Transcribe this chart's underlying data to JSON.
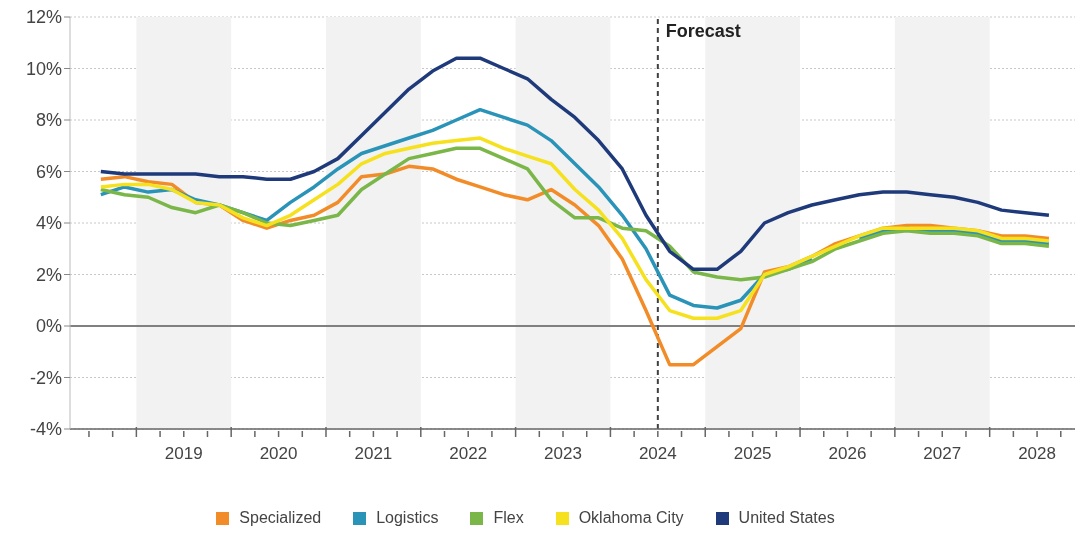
{
  "chart_data": {
    "type": "line",
    "x": [
      2018.625,
      2018.875,
      2019.125,
      2019.375,
      2019.625,
      2019.875,
      2020.125,
      2020.375,
      2020.625,
      2020.875,
      2021.125,
      2021.375,
      2021.625,
      2021.875,
      2022.125,
      2022.375,
      2022.625,
      2022.875,
      2023.125,
      2023.375,
      2023.625,
      2023.875,
      2024.125,
      2024.375,
      2024.625,
      2024.875,
      2025.125,
      2025.375,
      2025.625,
      2025.875,
      2026.125,
      2026.375,
      2026.625,
      2026.875,
      2027.125,
      2027.375,
      2027.625,
      2027.875,
      2028.125,
      2028.375,
      2028.625
    ],
    "series": [
      {
        "name": "Specialized",
        "color": "#f28c28",
        "values": [
          5.7,
          5.8,
          5.6,
          5.5,
          4.8,
          4.7,
          4.1,
          3.8,
          4.1,
          4.3,
          4.8,
          5.8,
          5.9,
          6.2,
          6.1,
          5.7,
          5.4,
          5.1,
          4.9,
          5.3,
          4.7,
          3.9,
          2.6,
          0.6,
          -1.5,
          -1.5,
          -0.8,
          -0.1,
          2.1,
          2.3,
          2.7,
          3.2,
          3.5,
          3.8,
          3.9,
          3.9,
          3.8,
          3.7,
          3.5,
          3.5,
          3.4
        ]
      },
      {
        "name": "Logistics",
        "color": "#2a93b8",
        "values": [
          5.1,
          5.4,
          5.2,
          5.3,
          4.9,
          4.7,
          4.4,
          4.1,
          4.8,
          5.4,
          6.1,
          6.7,
          7.0,
          7.3,
          7.6,
          8.0,
          8.4,
          8.1,
          7.8,
          7.2,
          6.3,
          5.4,
          4.3,
          3.0,
          1.2,
          0.8,
          0.7,
          1.0,
          2.0,
          2.2,
          2.6,
          null,
          3.4,
          3.7,
          3.8,
          3.7,
          3.7,
          3.6,
          3.3,
          3.3,
          3.2
        ]
      },
      {
        "name": "Flex",
        "color": "#7ab648",
        "values": [
          5.3,
          5.1,
          5.0,
          4.6,
          4.4,
          4.7,
          4.4,
          4.0,
          3.9,
          4.1,
          4.3,
          5.3,
          5.9,
          6.5,
          6.7,
          6.9,
          6.9,
          6.5,
          6.1,
          4.9,
          4.2,
          4.2,
          3.8,
          3.7,
          3.1,
          2.1,
          1.9,
          1.8,
          1.9,
          2.2,
          2.5,
          3.0,
          3.3,
          3.6,
          3.7,
          3.6,
          3.6,
          3.5,
          3.2,
          3.2,
          3.1
        ]
      },
      {
        "name": "Oklahoma City",
        "color": "#f5e11e",
        "values": [
          5.4,
          5.5,
          5.5,
          5.3,
          4.8,
          4.7,
          4.2,
          3.9,
          4.3,
          4.9,
          5.5,
          6.3,
          6.7,
          6.9,
          7.1,
          7.2,
          7.3,
          6.9,
          6.6,
          6.3,
          5.3,
          4.5,
          3.4,
          1.8,
          0.6,
          0.3,
          0.3,
          0.6,
          2.0,
          2.3,
          2.7,
          3.1,
          3.5,
          3.8,
          3.8,
          3.8,
          3.8,
          3.7,
          3.4,
          3.4,
          3.3
        ]
      },
      {
        "name": "United States",
        "color": "#1f3a7a",
        "values": [
          6.0,
          5.9,
          5.9,
          5.9,
          5.9,
          5.8,
          5.8,
          5.7,
          5.7,
          6.0,
          6.5,
          7.4,
          8.3,
          9.2,
          9.9,
          10.4,
          10.4,
          10.0,
          9.6,
          8.8,
          8.1,
          7.2,
          6.1,
          4.3,
          2.9,
          2.2,
          2.2,
          2.9,
          4.0,
          4.4,
          4.7,
          4.9,
          5.1,
          5.2,
          5.2,
          5.1,
          5.0,
          4.8,
          4.5,
          4.4,
          4.3
        ]
      }
    ],
    "xlim": [
      2018.3,
      2028.9
    ],
    "xticks": [
      {
        "value": 2018.5,
        "label": null
      },
      {
        "value": 2018.75,
        "label": null
      },
      {
        "value": 2019,
        "label": null
      },
      {
        "value": 2019.25,
        "label": null
      },
      {
        "value": 2019.5,
        "label": "2019"
      },
      {
        "value": 2019.75,
        "label": null
      },
      {
        "value": 2020,
        "label": null
      },
      {
        "value": 2020.25,
        "label": null
      },
      {
        "value": 2020.5,
        "label": "2020"
      },
      {
        "value": 2020.75,
        "label": null
      },
      {
        "value": 2021,
        "label": null
      },
      {
        "value": 2021.25,
        "label": null
      },
      {
        "value": 2021.5,
        "label": "2021"
      },
      {
        "value": 2021.75,
        "label": null
      },
      {
        "value": 2022,
        "label": null
      },
      {
        "value": 2022.25,
        "label": null
      },
      {
        "value": 2022.5,
        "label": "2022"
      },
      {
        "value": 2022.75,
        "label": null
      },
      {
        "value": 2023,
        "label": null
      },
      {
        "value": 2023.25,
        "label": null
      },
      {
        "value": 2023.5,
        "label": "2023"
      },
      {
        "value": 2023.75,
        "label": null
      },
      {
        "value": 2024,
        "label": null
      },
      {
        "value": 2024.25,
        "label": null
      },
      {
        "value": 2024.5,
        "label": "2024"
      },
      {
        "value": 2024.75,
        "label": null
      },
      {
        "value": 2025,
        "label": null
      },
      {
        "value": 2025.25,
        "label": null
      },
      {
        "value": 2025.5,
        "label": "2025"
      },
      {
        "value": 2025.75,
        "label": null
      },
      {
        "value": 2026,
        "label": null
      },
      {
        "value": 2026.25,
        "label": null
      },
      {
        "value": 2026.5,
        "label": "2026"
      },
      {
        "value": 2026.75,
        "label": null
      },
      {
        "value": 2027,
        "label": null
      },
      {
        "value": 2027.25,
        "label": null
      },
      {
        "value": 2027.5,
        "label": "2027"
      },
      {
        "value": 2027.75,
        "label": null
      },
      {
        "value": 2028,
        "label": null
      },
      {
        "value": 2028.25,
        "label": null
      },
      {
        "value": 2028.5,
        "label": "2028"
      },
      {
        "value": 2028.75,
        "label": null
      }
    ],
    "ylim": [
      -4,
      12
    ],
    "yticks": [
      {
        "value": -4,
        "label": "-4%"
      },
      {
        "value": -2,
        "label": "-2%"
      },
      {
        "value": 0,
        "label": "0%"
      },
      {
        "value": 2,
        "label": "2%"
      },
      {
        "value": 4,
        "label": "4%"
      },
      {
        "value": 6,
        "label": "6%"
      },
      {
        "value": 8,
        "label": "8%"
      },
      {
        "value": 10,
        "label": "10%"
      },
      {
        "value": 12,
        "label": "12%"
      }
    ],
    "bands": [
      {
        "axis": "x",
        "from": 2019,
        "to": 2020,
        "color": "#f2f2f2"
      },
      {
        "axis": "x",
        "from": 2021,
        "to": 2022,
        "color": "#f2f2f2"
      },
      {
        "axis": "x",
        "from": 2023,
        "to": 2024,
        "color": "#f2f2f2"
      },
      {
        "axis": "x",
        "from": 2025,
        "to": 2026,
        "color": "#f2f2f2"
      },
      {
        "axis": "x",
        "from": 2027,
        "to": 2028,
        "color": "#f2f2f2"
      }
    ],
    "ref_lines": [
      {
        "axis": "y",
        "value": 0,
        "color": "#808080",
        "line_style": "solid"
      },
      {
        "axis": "x",
        "value": 2024.5,
        "label": "Forecast",
        "color": "#404040",
        "line_style": "dashed"
      }
    ],
    "grid": "y",
    "legend": "bottom",
    "marker": "none",
    "line_style": "solid"
  }
}
